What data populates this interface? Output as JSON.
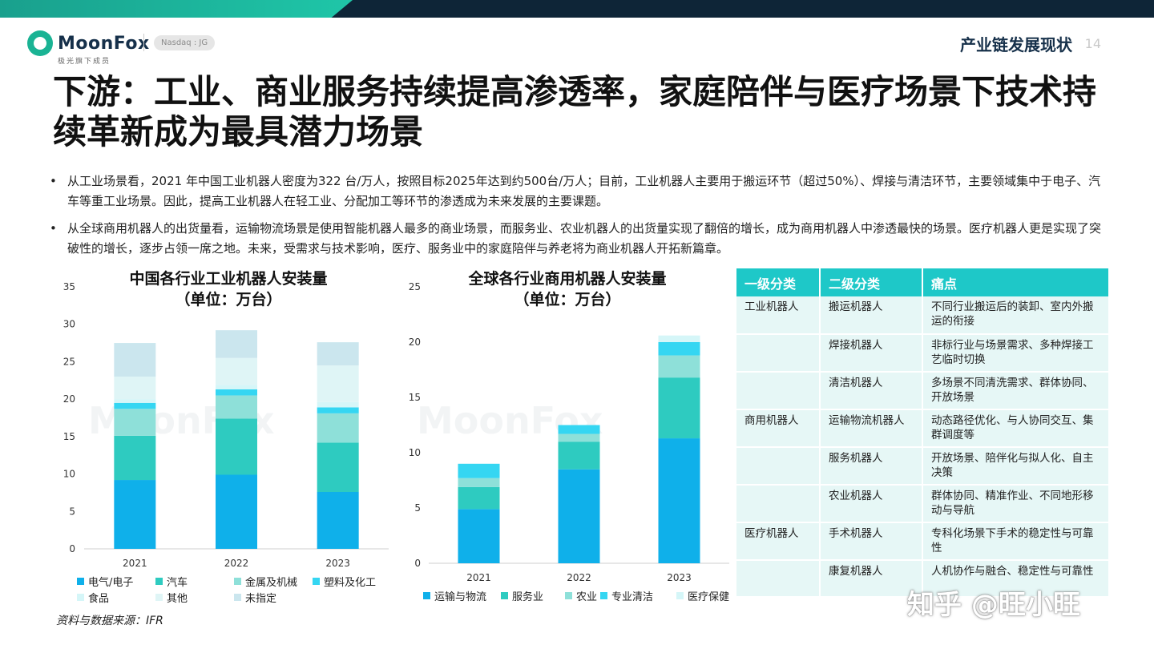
{
  "brand": {
    "name": "MoonFox",
    "subtitle": "极光旗下成员",
    "ticker": "Nasdaq : JG"
  },
  "header": {
    "section": "产业链发展现状",
    "page": "14"
  },
  "title": "下游：工业、商业服务持续提高渗透率，家庭陪伴与医疗场景下技术持续革新成为最具潜力场景",
  "bullets": [
    "从工业场景看，2021 年中国工业机器人密度为322 台/万人，按照目标2025年达到约500台/万人；目前，工业机器人主要用于搬运环节（超过50%）、焊接与清洁环节，主要领域集中于电子、汽车等重工业场景。因此，提高工业机器人在轻工业、分配加工等环节的渗透成为未来发展的主要课题。",
    "从全球商用机器人的出货量看，运输物流场景是使用智能机器人最多的商业场景，而服务业、农业机器人的出货量实现了翻倍的增长，成为商用机器人中渗透最快的场景。医疗机器人更是实现了突破性的增长，逐步占领一席之地。未来，受需求与技术影响，医疗、服务业中的家庭陪伴与养老将为商业机器人开拓新篇章。"
  ],
  "chart_data": [
    {
      "type": "bar",
      "stacked": true,
      "title": "中国各行业工业机器人安装量",
      "subtitle": "（单位：万台）",
      "categories": [
        "2021",
        "2022",
        "2023"
      ],
      "ylim": [
        0,
        35
      ],
      "yticks": [
        "0",
        "5",
        "10",
        "15",
        "20",
        "25",
        "30",
        "35"
      ],
      "grid": false,
      "legend_position": "bottom",
      "series": [
        {
          "name": "电气/电子",
          "color": "#0fb0ea",
          "values": [
            9.2,
            9.9,
            7.6
          ]
        },
        {
          "name": "汽车",
          "color": "#2ecbc0",
          "values": [
            5.9,
            7.5,
            6.6
          ]
        },
        {
          "name": "金属及机械",
          "color": "#8ee0d9",
          "values": [
            3.6,
            3.1,
            3.9
          ]
        },
        {
          "name": "塑料及化工",
          "color": "#35d6f2",
          "values": [
            0.8,
            0.8,
            0.8
          ]
        },
        {
          "name": "食品",
          "color": "#d5f6f8",
          "values": [
            0.5,
            0.6,
            0.7
          ]
        },
        {
          "name": "其他",
          "color": "#dff5f6",
          "values": [
            3.0,
            3.6,
            4.9
          ]
        },
        {
          "name": "未指定",
          "color": "#cbe6ee",
          "values": [
            4.5,
            3.7,
            3.1
          ]
        }
      ]
    },
    {
      "type": "bar",
      "stacked": true,
      "title": "全球各行业商用机器人安装量",
      "subtitle": "（单位：万台）",
      "categories": [
        "2021",
        "2022",
        "2023"
      ],
      "ylim": [
        0,
        25
      ],
      "yticks": [
        "0",
        "5",
        "10",
        "15",
        "20",
        "25"
      ],
      "grid": false,
      "legend_position": "bottom",
      "series": [
        {
          "name": "运输与物流",
          "color": "#0fb0ea",
          "values": [
            4.9,
            8.5,
            11.3
          ]
        },
        {
          "name": "服务业",
          "color": "#2ecbc0",
          "values": [
            2.0,
            2.5,
            5.5
          ]
        },
        {
          "name": "农业",
          "color": "#8ee0d9",
          "values": [
            0.8,
            0.7,
            2.0
          ]
        },
        {
          "name": "专业清洁",
          "color": "#35d6f2",
          "values": [
            1.3,
            0.8,
            1.2
          ]
        },
        {
          "name": "医疗保健",
          "color": "#d5f6f8",
          "values": [
            0.0,
            0.0,
            0.6
          ]
        }
      ]
    }
  ],
  "source": "资料与数据来源：IFR",
  "pain_table": {
    "headers": [
      "一级分类",
      "二级分类",
      "痛点"
    ],
    "rows": [
      {
        "c1": "工业机器人",
        "c2": "搬运机器人",
        "c3": "不同行业搬运后的装卸、室内外搬运的衔接"
      },
      {
        "c1": "",
        "c2": "焊接机器人",
        "c3": "非标行业与场景需求、多种焊接工艺临时切换"
      },
      {
        "c1": "",
        "c2": "清洁机器人",
        "c3": "多场景不同清洗需求、群体协同、开放场景"
      },
      {
        "c1": "商用机器人",
        "c2": "运输物流机器人",
        "c3": "动态路径优化、与人协同交互、集群调度等"
      },
      {
        "c1": "",
        "c2": "服务机器人",
        "c3": "开放场景、陪伴化与拟人化、自主决策"
      },
      {
        "c1": "",
        "c2": "农业机器人",
        "c3": "群体协同、精准作业、不同地形移动与导航"
      },
      {
        "c1": "医疗机器人",
        "c2": "手术机器人",
        "c3": "专科化场景下手术的稳定性与可靠性"
      },
      {
        "c1": "",
        "c2": "康复机器人",
        "c3": "人机协作与融合、稳定性与可靠性"
      }
    ]
  },
  "watermark": "MoonFox",
  "credit": "知乎 @旺小旺"
}
